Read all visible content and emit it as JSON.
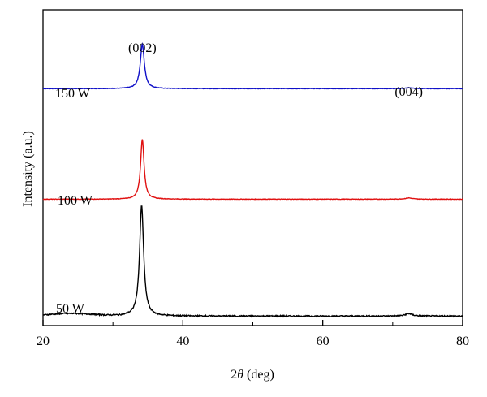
{
  "chart_data": {
    "type": "line",
    "title": "",
    "xlabel_prefix": "2",
    "xlabel_theta": "θ",
    "xlabel_suffix": " (deg)",
    "ylabel": "Intensity (a.u.)",
    "xlim": [
      20,
      80
    ],
    "x_ticks": [
      20,
      40,
      60,
      80
    ],
    "y_ticks": [],
    "grid": false,
    "legend": "none",
    "series": [
      {
        "name": "150 W",
        "color": "#1010c8",
        "offset": 0.75,
        "peaks": [
          {
            "x": 34.2,
            "height": 0.14,
            "width": 0.35
          },
          {
            "x": 72.3,
            "height": 0.003,
            "width": 0.6
          }
        ],
        "noise": 0.0015
      },
      {
        "name": "100 W",
        "color": "#e01010",
        "offset": 0.4,
        "peaks": [
          {
            "x": 34.2,
            "height": 0.19,
            "width": 0.3
          },
          {
            "x": 72.3,
            "height": 0.004,
            "width": 0.6
          }
        ],
        "noise": 0.0015
      },
      {
        "name": "50 W",
        "color": "#000000",
        "offset": 0.03,
        "peaks": [
          {
            "x": 34.1,
            "height": 0.35,
            "width": 0.35
          },
          {
            "x": 72.3,
            "height": 0.008,
            "width": 0.6
          }
        ],
        "noise": 0.004
      }
    ],
    "annotations": [
      {
        "text": "(002)",
        "x": 34.2
      },
      {
        "text": "(004)",
        "x": 72.3
      }
    ]
  }
}
